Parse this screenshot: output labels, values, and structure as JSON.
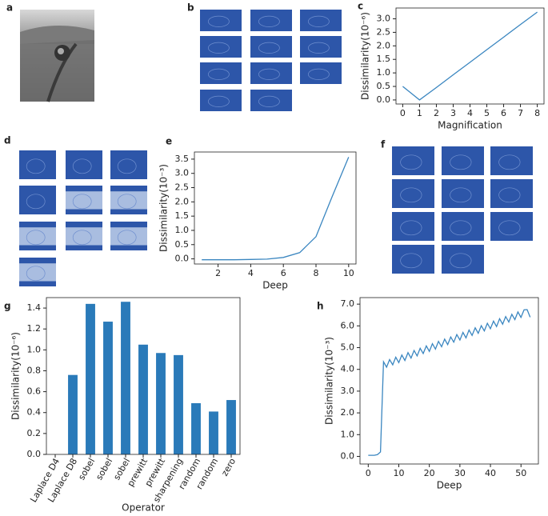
{
  "panel_labels": [
    "a",
    "b",
    "c",
    "d",
    "e",
    "f",
    "g",
    "h"
  ],
  "chart_data": [
    {
      "type": "line",
      "color": "#3a86c0",
      "xlabel": "Magnification",
      "ylabel": "Dissimilarity(10⁻⁶)",
      "x": [
        0,
        1,
        2,
        3,
        4,
        5,
        6,
        7,
        8
      ],
      "values": [
        0.5,
        0,
        0.46,
        0.93,
        1.39,
        1.86,
        2.32,
        2.79,
        3.25
      ],
      "xlim": [
        -0.4,
        8.4
      ],
      "ylim": [
        -0.15,
        3.4
      ],
      "xticks": [
        0,
        1,
        2,
        3,
        4,
        5,
        6,
        7,
        8
      ],
      "yticks": [
        {
          "value": 0,
          "label": "0.0"
        },
        0.5,
        {
          "value": 1,
          "label": "1.0"
        },
        1.5,
        {
          "value": 2,
          "label": "2.0"
        },
        2.5,
        {
          "value": 3,
          "label": "3.0"
        }
      ]
    },
    {
      "type": "line",
      "color": "#3a86c0",
      "xlabel": "Deep",
      "ylabel": "Dissimilarity(10⁻³)",
      "x": [
        1,
        2,
        3,
        4,
        5,
        6,
        7,
        8,
        9,
        10
      ],
      "values": [
        -0.03,
        -0.03,
        -0.03,
        -0.02,
        -0.01,
        0.05,
        0.22,
        0.78,
        2.2,
        3.57
      ],
      "xlim": [
        0.55,
        10.45
      ],
      "ylim": [
        -0.18,
        3.75
      ],
      "xticks": [
        2,
        4,
        6,
        8,
        10
      ],
      "yticks": [
        {
          "value": 0,
          "label": "0.0"
        },
        0.5,
        {
          "value": 1,
          "label": "1.0"
        },
        1.5,
        {
          "value": 2,
          "label": "2.0"
        },
        2.5,
        {
          "value": 3,
          "label": "3.0"
        },
        3.5
      ]
    },
    {
      "type": "bar",
      "color": "#2a7ab9",
      "xlabel": "Operator",
      "ylabel": "Dissimilarity(10⁻⁶)",
      "categories": [
        "Laplace D4",
        "Laplace D8",
        "sobel",
        "sobel",
        "sobel",
        "prewitt",
        "prewitt",
        "sharpening",
        "random",
        "random",
        "zero"
      ],
      "values": [
        0,
        0.76,
        1.44,
        1.27,
        1.46,
        1.05,
        0.97,
        0.95,
        0.49,
        0.41,
        0.52
      ],
      "ylim": [
        0,
        1.5
      ],
      "yticks": [
        {
          "value": 0,
          "label": "0.0"
        },
        0.2,
        0.4,
        0.6,
        0.8,
        {
          "value": 1,
          "label": "1.0"
        },
        1.2,
        1.4
      ]
    },
    {
      "type": "line",
      "color": "#3a86c0",
      "xlabel": "Deep",
      "ylabel": "Dissimilarity(10⁻³)",
      "x": [
        0,
        1,
        2,
        3,
        4,
        5,
        6,
        7,
        8,
        9,
        10,
        11,
        12,
        13,
        14,
        15,
        16,
        17,
        18,
        19,
        20,
        21,
        22,
        23,
        24,
        25,
        26,
        27,
        28,
        29,
        30,
        31,
        32,
        33,
        34,
        35,
        36,
        37,
        38,
        39,
        40,
        41,
        42,
        43,
        44,
        45,
        46,
        47,
        48,
        49,
        50,
        51,
        52,
        53
      ],
      "values": [
        0.05,
        0.05,
        0.05,
        0.08,
        0.2,
        4.35,
        4.1,
        4.45,
        4.21,
        4.56,
        4.31,
        4.66,
        4.41,
        4.77,
        4.52,
        4.87,
        4.62,
        4.97,
        4.73,
        5.08,
        4.83,
        5.18,
        4.93,
        5.29,
        5.04,
        5.39,
        5.14,
        5.49,
        5.25,
        5.6,
        5.35,
        5.7,
        5.45,
        5.81,
        5.56,
        5.91,
        5.66,
        6.01,
        5.77,
        6.12,
        5.87,
        6.22,
        5.97,
        6.33,
        6.08,
        6.43,
        6.18,
        6.53,
        6.29,
        6.64,
        6.39,
        6.74,
        6.75,
        6.4
      ],
      "xlim": [
        -2.7,
        55.7
      ],
      "ylim": [
        -0.35,
        7.3
      ],
      "xticks": [
        0,
        10,
        20,
        30,
        40,
        50
      ],
      "yticks": [
        {
          "value": 0,
          "label": "0.0"
        },
        {
          "value": 1,
          "label": "1.0"
        },
        {
          "value": 2,
          "label": "2.0"
        },
        {
          "value": 3,
          "label": "3.0"
        },
        {
          "value": 4,
          "label": "4.0"
        },
        {
          "value": 5,
          "label": "5.0"
        },
        {
          "value": 6,
          "label": "6.0"
        },
        {
          "value": 7,
          "label": "7.0"
        }
      ]
    }
  ]
}
